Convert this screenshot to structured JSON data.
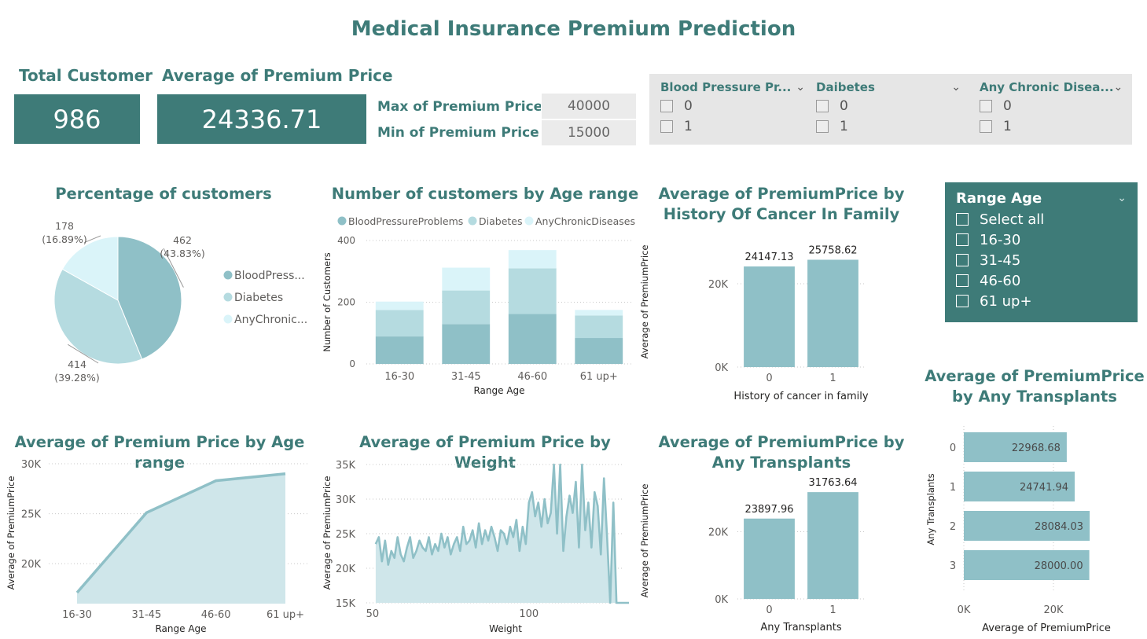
{
  "title": "Medical Insurance Premium Prediction",
  "kpis": {
    "total_customer_label": "Total Customer",
    "total_customer_value": "986",
    "avg_premium_label": "Average of Premium Price",
    "avg_premium_value": "24336.71",
    "max_label": "Max of Premium Price",
    "max_value": "40000",
    "min_label": "Min of Premium Price",
    "min_value": "15000"
  },
  "slicers": [
    {
      "title": "Blood Pressure Pr...",
      "options": [
        "0",
        "1"
      ]
    },
    {
      "title": "Daibetes",
      "options": [
        "0",
        "1"
      ]
    },
    {
      "title": "Any Chronic Disea...",
      "options": [
        "0",
        "1"
      ]
    }
  ],
  "range_slicer": {
    "title": "Range Age",
    "options": [
      "Select all",
      "16-30",
      "31-45",
      "46-60",
      "61 up+"
    ]
  },
  "colors": {
    "accent": "#3e7b78",
    "series1": "#8fc0c7",
    "series2": "#b5dbe0",
    "series3": "#daf4f9",
    "area_fill": "#cfe6ea"
  },
  "chart_data": [
    {
      "id": "pie",
      "type": "pie",
      "title": "Percentage of customers",
      "legend": [
        "BloodPress...",
        "Diabetes",
        "AnyChronic..."
      ],
      "series_names": [
        "BloodPressureProblems",
        "Diabetes",
        "AnyChronicDiseases"
      ],
      "values": [
        462,
        414,
        178
      ],
      "labels": [
        "462\n(43.83%)",
        "414\n(39.28%)",
        "178\n(16.89%)"
      ],
      "legend_position": "right"
    },
    {
      "id": "stacked",
      "type": "bar",
      "stacked": true,
      "title": "Number of customers by Age range",
      "categories": [
        "16-30",
        "31-45",
        "46-60",
        "61 up+"
      ],
      "series": [
        {
          "name": "BloodPressureProblems",
          "values": [
            89,
            129,
            162,
            84
          ]
        },
        {
          "name": "Diabetes",
          "values": [
            86,
            109,
            148,
            73
          ]
        },
        {
          "name": "AnyChronicDiseases",
          "values": [
            27,
            74,
            59,
            18
          ]
        }
      ],
      "xlabel": "Range Age",
      "ylabel": "Number of Customers",
      "yticks": [
        "0",
        "200",
        "400"
      ],
      "ylim": [
        0,
        400
      ],
      "legend_position": "top"
    },
    {
      "id": "cancer",
      "type": "bar",
      "title": "Average of PremiumPrice by History Of Cancer In Family",
      "categories": [
        "0",
        "1"
      ],
      "values": [
        24147.13,
        25758.62
      ],
      "data_labels": [
        "24147.13",
        "25758.62"
      ],
      "xlabel": "History of cancer in family",
      "ylabel": "Average of PremiumPrice",
      "yticks": [
        "0K",
        "20K"
      ],
      "ylim": [
        0,
        30000
      ]
    },
    {
      "id": "age_line",
      "type": "area",
      "title": "Average of Premium Price by Age range",
      "categories": [
        "16-30",
        "31-45",
        "46-60",
        "61 up+"
      ],
      "values": [
        17100,
        25100,
        28300,
        29000
      ],
      "xlabel": "Range Age",
      "ylabel": "Average of PremiumPrice",
      "yticks": [
        "20K",
        "25K",
        "30K"
      ],
      "ylim": [
        16000,
        30000
      ]
    },
    {
      "id": "weight",
      "type": "area",
      "title": "Average of Premium Price by Weight",
      "x": [
        51,
        52,
        53,
        54,
        55,
        56,
        57,
        58,
        59,
        60,
        61,
        62,
        63,
        64,
        65,
        66,
        67,
        68,
        69,
        70,
        71,
        72,
        73,
        74,
        75,
        76,
        77,
        78,
        79,
        80,
        81,
        82,
        83,
        84,
        85,
        86,
        87,
        88,
        89,
        90,
        91,
        92,
        93,
        94,
        95,
        96,
        97,
        98,
        99,
        100,
        101,
        102,
        103,
        104,
        105,
        106,
        107,
        108,
        109,
        110,
        111,
        112,
        113,
        114,
        115,
        116,
        117,
        118,
        119,
        120,
        121,
        122,
        123,
        124,
        125,
        126,
        127,
        128,
        129,
        130,
        131,
        132
      ],
      "values": [
        23500,
        24500,
        21000,
        24000,
        20500,
        22500,
        21500,
        24500,
        22000,
        21000,
        23000,
        24500,
        21500,
        22500,
        24000,
        23000,
        22500,
        24500,
        22000,
        23500,
        22500,
        25000,
        23000,
        24500,
        22000,
        23500,
        24500,
        22500,
        26000,
        23500,
        24000,
        25500,
        23000,
        26500,
        23500,
        25500,
        24000,
        26000,
        24500,
        22500,
        25500,
        25000,
        23500,
        26000,
        24500,
        27000,
        22500,
        26000,
        23500,
        29500,
        31000,
        27500,
        29500,
        26000,
        30000,
        26500,
        28000,
        35000,
        25000,
        35000,
        22500,
        27500,
        30500,
        28000,
        32500,
        23000,
        35000,
        25500,
        29500,
        23000,
        31000,
        29000,
        22000,
        33000,
        24500,
        15000,
        29500,
        15000,
        15000,
        15000,
        15000,
        15000
      ],
      "xlabel": "Weight",
      "ylabel": "Average of PremiumPrice",
      "xticks": [
        "50",
        "100"
      ],
      "yticks": [
        "15K",
        "20K",
        "25K",
        "30K",
        "35K"
      ],
      "xlim": [
        46,
        135
      ],
      "ylim": [
        15000,
        35000
      ]
    },
    {
      "id": "transplant_v",
      "type": "bar",
      "title": "Average of PremiumPrice by Any Transplants",
      "categories": [
        "0",
        "1"
      ],
      "values": [
        23897.96,
        31763.64
      ],
      "data_labels": [
        "23897.96",
        "31763.64"
      ],
      "xlabel": "Any Transplants",
      "ylabel": "Average of PremiumPrice",
      "yticks": [
        "0K",
        "20K"
      ],
      "ylim": [
        0,
        36000
      ]
    },
    {
      "id": "transplant_h",
      "type": "bar",
      "orientation": "horizontal",
      "title": "Average of PremiumPrice by Any Transplants",
      "categories": [
        "0",
        "1",
        "2",
        "3"
      ],
      "values": [
        22968.68,
        24741.94,
        28084.03,
        28000.0
      ],
      "data_labels": [
        "22968.68",
        "24741.94",
        "28084.03",
        "28000.00"
      ],
      "xlabel": "Average of PremiumPrice",
      "ylabel": "Any Transplants",
      "xticks": [
        "0K",
        "20K"
      ],
      "xlim": [
        0,
        40000
      ]
    }
  ]
}
